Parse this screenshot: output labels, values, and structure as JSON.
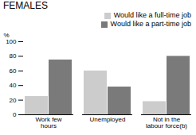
{
  "chart_data": {
    "type": "bar",
    "title": "FEMALES",
    "ylabel": "%",
    "categories": [
      "Work few\nhours",
      "Unemployed",
      "Not in the\nlabour force(b)"
    ],
    "series": [
      {
        "name": "Would like a full-time job",
        "color": "#cccccc",
        "values": [
          25,
          60,
          18
        ]
      },
      {
        "name": "Would like a part-time job",
        "color": "#7a7a7a",
        "values": [
          75,
          38,
          80
        ]
      }
    ],
    "ylim": [
      0,
      100
    ],
    "yticks": [
      0,
      20,
      40,
      60,
      80,
      100
    ],
    "legend": "upper right"
  }
}
